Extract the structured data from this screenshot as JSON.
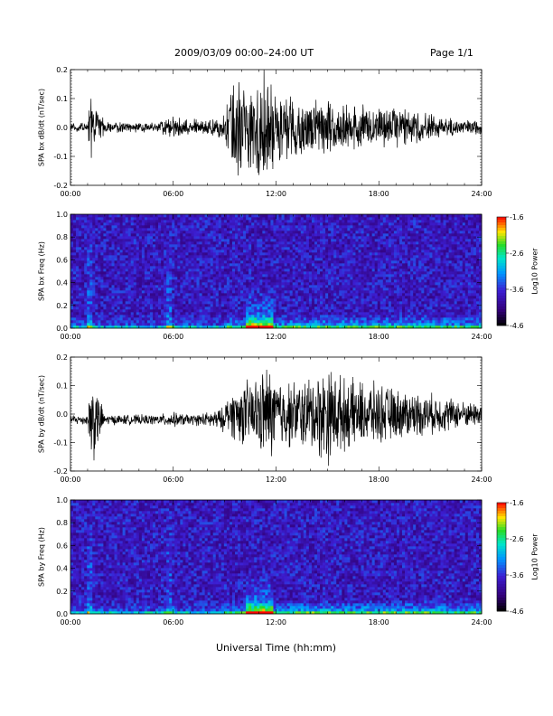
{
  "header": {
    "title": "2009/03/09   00:00–24:00 UT",
    "page": "Page 1/1"
  },
  "xaxis": {
    "label": "Universal Time (hh:mm)",
    "ticks": [
      "00:00",
      "06:00",
      "12:00",
      "18:00",
      "24:00"
    ]
  },
  "colorbar": {
    "label": "Log10 Power",
    "ticks": [
      "-1.6",
      "-2.6",
      "-3.6",
      "-4.6"
    ]
  },
  "chart_data": [
    {
      "type": "line",
      "ylabel": "SPA bx dB/dt (nT/sec)",
      "xlim": [
        0,
        24
      ],
      "ylim": [
        -0.2,
        0.2
      ],
      "yticks": [
        "0.2",
        "0.1",
        "0.0",
        "-0.1",
        "-0.2"
      ],
      "series": [
        {
          "x": [
            0,
            1,
            1.2,
            2,
            3,
            4,
            5,
            5.5,
            6,
            7,
            8,
            9,
            9.5,
            10,
            10.5,
            11,
            11.5,
            12,
            13,
            14,
            15,
            16,
            17,
            18,
            19,
            20,
            21,
            22,
            23,
            24
          ],
          "amplitude": [
            0.015,
            0.02,
            0.14,
            0.02,
            0.02,
            0.02,
            0.02,
            0.03,
            0.05,
            0.03,
            0.03,
            0.05,
            0.2,
            0.2,
            0.15,
            0.2,
            0.2,
            0.15,
            0.12,
            0.1,
            0.1,
            0.09,
            0.09,
            0.08,
            0.08,
            0.07,
            0.05,
            0.04,
            0.03,
            0.03
          ]
        }
      ]
    },
    {
      "type": "heatmap",
      "ylabel": "SPA bx Freq (Hz)",
      "xlim": [
        0,
        24
      ],
      "ylim": [
        0.0,
        1.0
      ],
      "yticks": [
        "1.0",
        "0.8",
        "0.6",
        "0.4",
        "0.2",
        "0.0"
      ],
      "zlim": [
        -4.6,
        -1.6
      ],
      "zlabel": "Log10 Power"
    },
    {
      "type": "line",
      "ylabel": "SPA by dB/dt (nT/sec)",
      "xlim": [
        0,
        24
      ],
      "ylim": [
        -0.2,
        0.2
      ],
      "yticks": [
        "0.2",
        "0.1",
        "0.0",
        "-0.1",
        "-0.2"
      ],
      "series": [
        {
          "x": [
            0,
            1,
            1.2,
            2,
            3,
            4,
            5,
            6,
            7,
            8,
            9,
            9.5,
            10,
            10.5,
            11,
            11.5,
            12,
            13,
            14,
            15,
            16,
            17,
            18,
            19,
            20,
            21,
            22,
            23,
            24
          ],
          "amplitude": [
            0.02,
            0.02,
            0.2,
            0.02,
            0.02,
            0.02,
            0.02,
            0.03,
            0.02,
            0.03,
            0.05,
            0.1,
            0.12,
            0.14,
            0.15,
            0.2,
            0.15,
            0.13,
            0.15,
            0.2,
            0.14,
            0.13,
            0.12,
            0.1,
            0.09,
            0.08,
            0.07,
            0.05,
            0.05
          ]
        }
      ]
    },
    {
      "type": "heatmap",
      "ylabel": "SPA by Freq (Hz)",
      "xlim": [
        0,
        24
      ],
      "ylim": [
        0.0,
        1.0
      ],
      "yticks": [
        "1.0",
        "0.8",
        "0.6",
        "0.4",
        "0.2",
        "0.0"
      ],
      "zlim": [
        -4.6,
        -1.6
      ],
      "zlabel": "Log10 Power"
    }
  ]
}
